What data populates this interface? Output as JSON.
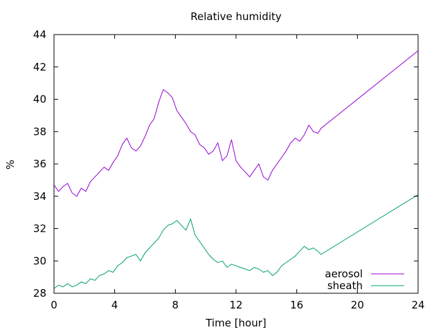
{
  "chart_data": {
    "type": "line",
    "title": "Relative humidity",
    "xlabel": "Time [hour]",
    "ylabel": "%",
    "xlim": [
      0,
      24
    ],
    "ylim": [
      28,
      44
    ],
    "xticks": [
      0,
      4,
      8,
      12,
      16,
      20,
      24
    ],
    "yticks": [
      28,
      30,
      32,
      34,
      36,
      38,
      40,
      42,
      44
    ],
    "grid": false,
    "legend_position": "bottom-right",
    "series": [
      {
        "name": "aerosol",
        "color": "#9400d3",
        "x": [
          0,
          0.3,
          0.6,
          0.9,
          1.2,
          1.5,
          1.8,
          2.1,
          2.4,
          2.7,
          3.0,
          3.3,
          3.6,
          3.9,
          4.2,
          4.5,
          4.8,
          5.1,
          5.4,
          5.7,
          6.0,
          6.3,
          6.6,
          6.9,
          7.2,
          7.5,
          7.8,
          8.1,
          8.4,
          8.7,
          9.0,
          9.3,
          9.6,
          9.9,
          10.2,
          10.5,
          10.8,
          11.1,
          11.4,
          11.7,
          12.0,
          12.3,
          12.6,
          12.9,
          13.2,
          13.5,
          13.8,
          14.1,
          14.4,
          14.7,
          15.0,
          15.3,
          15.6,
          15.9,
          16.2,
          16.5,
          16.8,
          17.1,
          17.4,
          17.6,
          24.0
        ],
        "y": [
          34.7,
          34.3,
          34.6,
          34.8,
          34.2,
          34.0,
          34.5,
          34.3,
          34.9,
          35.2,
          35.5,
          35.8,
          35.6,
          36.1,
          36.5,
          37.2,
          37.6,
          37.0,
          36.8,
          37.1,
          37.7,
          38.4,
          38.8,
          39.8,
          40.6,
          40.4,
          40.1,
          39.3,
          38.9,
          38.5,
          38.0,
          37.8,
          37.2,
          37.0,
          36.6,
          36.8,
          37.3,
          36.2,
          36.5,
          37.5,
          36.2,
          35.8,
          35.5,
          35.2,
          35.6,
          36.0,
          35.2,
          35.0,
          35.6,
          36.0,
          36.4,
          36.8,
          37.3,
          37.6,
          37.4,
          37.8,
          38.4,
          38.0,
          37.9,
          38.2,
          43.0
        ]
      },
      {
        "name": "sheath",
        "color": "#009e73",
        "x": [
          0,
          0.3,
          0.6,
          0.9,
          1.2,
          1.5,
          1.8,
          2.1,
          2.4,
          2.7,
          3.0,
          3.3,
          3.6,
          3.9,
          4.2,
          4.5,
          4.8,
          5.1,
          5.4,
          5.7,
          6.0,
          6.3,
          6.6,
          6.9,
          7.2,
          7.5,
          7.8,
          8.1,
          8.4,
          8.7,
          9.0,
          9.3,
          9.6,
          9.9,
          10.2,
          10.5,
          10.8,
          11.1,
          11.4,
          11.7,
          12.0,
          12.3,
          12.6,
          12.9,
          13.2,
          13.5,
          13.8,
          14.1,
          14.4,
          14.7,
          15.0,
          15.3,
          15.6,
          15.9,
          16.2,
          16.5,
          16.8,
          17.1,
          17.4,
          17.6,
          24.0
        ],
        "y": [
          28.3,
          28.5,
          28.4,
          28.6,
          28.4,
          28.5,
          28.7,
          28.6,
          28.9,
          28.8,
          29.1,
          29.2,
          29.4,
          29.3,
          29.7,
          29.9,
          30.2,
          30.3,
          30.4,
          30.0,
          30.5,
          30.8,
          31.1,
          31.4,
          31.9,
          32.2,
          32.3,
          32.5,
          32.2,
          31.9,
          32.6,
          31.6,
          31.2,
          30.8,
          30.4,
          30.1,
          29.9,
          30.0,
          29.6,
          29.8,
          29.7,
          29.6,
          29.5,
          29.4,
          29.6,
          29.5,
          29.3,
          29.4,
          29.1,
          29.3,
          29.7,
          29.9,
          30.1,
          30.3,
          30.6,
          30.9,
          30.7,
          30.8,
          30.6,
          30.4,
          34.1
        ]
      }
    ]
  }
}
